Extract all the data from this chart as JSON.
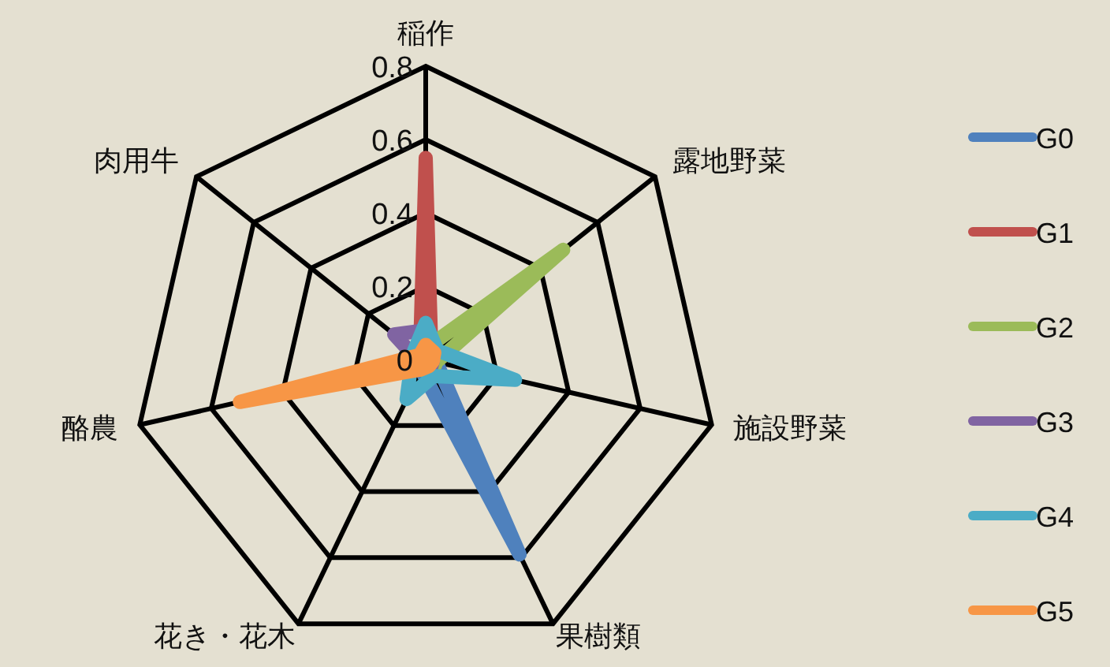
{
  "chart_data": {
    "type": "radar",
    "categories": [
      "稲作",
      "露地野菜",
      "施設野菜",
      "果樹類",
      "花き・花木",
      "酪農",
      "肉用牛"
    ],
    "series": [
      {
        "name": "G0",
        "color": "#4f81bd",
        "values": [
          0.02,
          0.02,
          0.03,
          0.59,
          0.03,
          0.02,
          0.02
        ]
      },
      {
        "name": "G1",
        "color": "#c0504d",
        "values": [
          0.55,
          0.02,
          0.02,
          0.02,
          0.02,
          0.02,
          0.02
        ]
      },
      {
        "name": "G2",
        "color": "#9bbb59",
        "values": [
          0.03,
          0.48,
          0.03,
          0.04,
          0.03,
          0.02,
          0.02
        ]
      },
      {
        "name": "G3",
        "color": "#8064a2",
        "values": [
          0.08,
          0.02,
          0.02,
          0.03,
          0.02,
          0.02,
          0.11
        ]
      },
      {
        "name": "G4",
        "color": "#4bacc6",
        "values": [
          0.1,
          0.04,
          0.25,
          0.05,
          0.12,
          0.04,
          0.04
        ]
      },
      {
        "name": "G5",
        "color": "#f79646",
        "values": [
          0.04,
          0.03,
          0.02,
          0.02,
          0.03,
          0.52,
          0.02
        ]
      }
    ],
    "ylim": [
      0,
      0.8
    ],
    "yticks": [
      0,
      0.2,
      0.4,
      0.6,
      0.8
    ],
    "grid": true,
    "legend": "right",
    "line_style": "solid"
  }
}
